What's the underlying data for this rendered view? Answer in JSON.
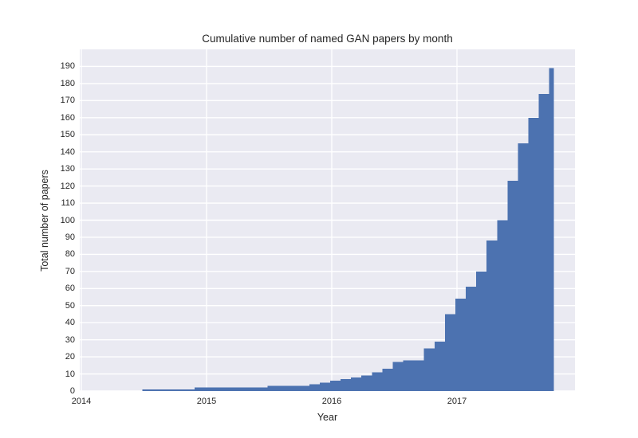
{
  "figure": {
    "title": "Cumulative number of named GAN papers by month",
    "xlabel": "Year",
    "ylabel": "Total number of papers"
  },
  "chart_data": {
    "type": "bar",
    "title": "Cumulative number of named GAN papers by month",
    "xlabel": "Year",
    "ylabel": "Total number of papers",
    "legend": "none",
    "grid": "on",
    "style": "seaborn-darkgrid",
    "panel_color": "#eaeaf2",
    "grid_color": "#ffffff",
    "bar_color": "#4c72b0",
    "text_color": "#262626",
    "ylim": [
      0,
      200
    ],
    "y_ticks": [
      0,
      10,
      20,
      30,
      40,
      50,
      60,
      70,
      80,
      90,
      100,
      110,
      120,
      130,
      140,
      150,
      160,
      170,
      180,
      190
    ],
    "x_tick_labels": [
      "2014",
      "2015",
      "2016",
      "2017"
    ],
    "months": [
      "2014-06",
      "2014-07",
      "2014-08",
      "2014-09",
      "2014-10",
      "2014-11",
      "2014-12",
      "2015-01",
      "2015-02",
      "2015-03",
      "2015-04",
      "2015-05",
      "2015-06",
      "2015-07",
      "2015-08",
      "2015-09",
      "2015-10",
      "2015-11",
      "2015-12",
      "2016-01",
      "2016-02",
      "2016-03",
      "2016-04",
      "2016-05",
      "2016-06",
      "2016-07",
      "2016-08",
      "2016-09",
      "2016-10",
      "2016-11",
      "2016-12",
      "2017-01",
      "2017-02",
      "2017-03",
      "2017-04",
      "2017-05",
      "2017-06",
      "2017-07",
      "2017-08",
      "2017-09"
    ],
    "cumulative_values": [
      1,
      1,
      1,
      1,
      1,
      2,
      2,
      2,
      2,
      2,
      2,
      2,
      3,
      3,
      3,
      3,
      4,
      5,
      6,
      7,
      8,
      9,
      11,
      13,
      17,
      18,
      18,
      25,
      29,
      45,
      54,
      61,
      70,
      88,
      100,
      123,
      145,
      160,
      174,
      189
    ]
  }
}
